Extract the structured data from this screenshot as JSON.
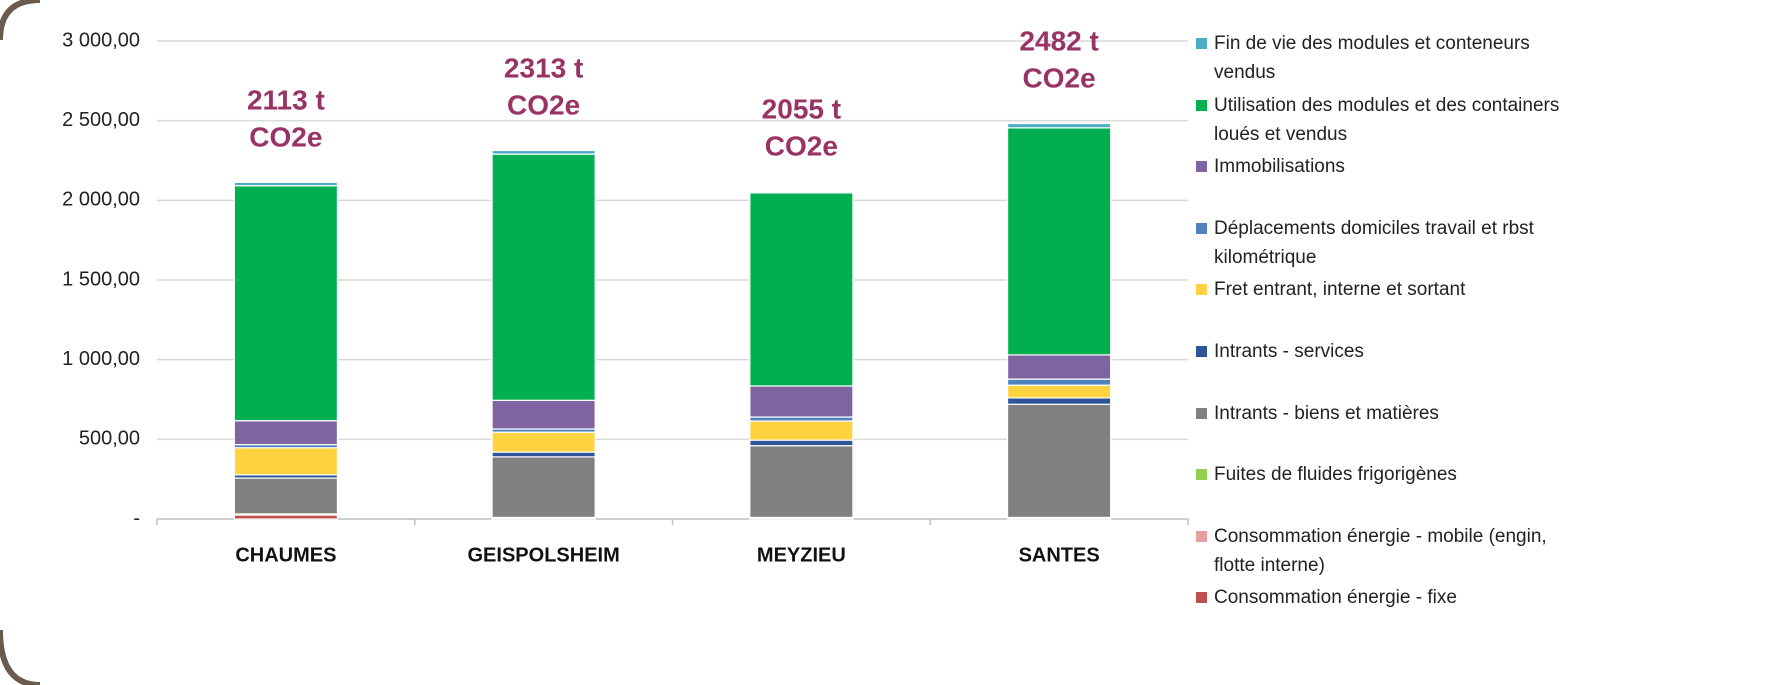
{
  "chart_data": {
    "type": "stacked_bar",
    "categories": [
      "CHAUMES",
      "GEISPOLSHEIM",
      "MEYZIEU",
      "SANTES"
    ],
    "series": [
      {
        "name": "Consommation énergie - fixe",
        "color": "#c0504d",
        "values": [
          25,
          5,
          5,
          5
        ]
      },
      {
        "name": "Consommation énergie - mobile (engin, flotte interne)",
        "color": "#e6a0a0",
        "values": [
          5,
          3,
          3,
          3
        ]
      },
      {
        "name": "Fuites de fluides frigorigènes",
        "color": "#92d050",
        "values": [
          2,
          2,
          2,
          2
        ]
      },
      {
        "name": "Intrants - biens et matières",
        "color": "#808080",
        "values": [
          225,
          380,
          450,
          710
        ]
      },
      {
        "name": "Intrants - services",
        "color": "#2e5597",
        "values": [
          20,
          30,
          35,
          40
        ]
      },
      {
        "name": "Fret entrant, interne et sortant",
        "color": "#ffd33f",
        "values": [
          170,
          125,
          120,
          80
        ]
      },
      {
        "name": "Déplacements domiciles travail et rbst kilométrique",
        "color": "#4f81bd",
        "values": [
          20,
          20,
          25,
          38
        ]
      },
      {
        "name": "Immobilisations",
        "color": "#8064a2",
        "values": [
          150,
          180,
          195,
          152
        ]
      },
      {
        "name": "Utilisation des modules et des containers loués et vendus",
        "color": "#00b050",
        "values": [
          1475,
          1545,
          1212,
          1425
        ]
      },
      {
        "name": "Fin de vie des modules et conteneurs vendus",
        "color": "#4bacc6",
        "values": [
          21,
          23,
          8,
          27
        ]
      }
    ],
    "totals": [
      2113,
      2313,
      2055,
      2482
    ],
    "total_labels": [
      "2113 t CO2e",
      "2313 t CO2e",
      "2055 t CO2e",
      "2482 t CO2e"
    ],
    "annotation_color": "#993366",
    "ylim": [
      0,
      3000
    ],
    "yticks": [
      {
        "value": 0,
        "label": "-"
      },
      {
        "value": 500,
        "label": "500,00"
      },
      {
        "value": 1000,
        "label": "1 000,00"
      },
      {
        "value": 1500,
        "label": "1 500,00"
      },
      {
        "value": 2000,
        "label": "2 000,00"
      },
      {
        "value": 2500,
        "label": "2 500,00"
      },
      {
        "value": 3000,
        "label": "3 000,00"
      }
    ],
    "grid": true,
    "legend": "right"
  }
}
